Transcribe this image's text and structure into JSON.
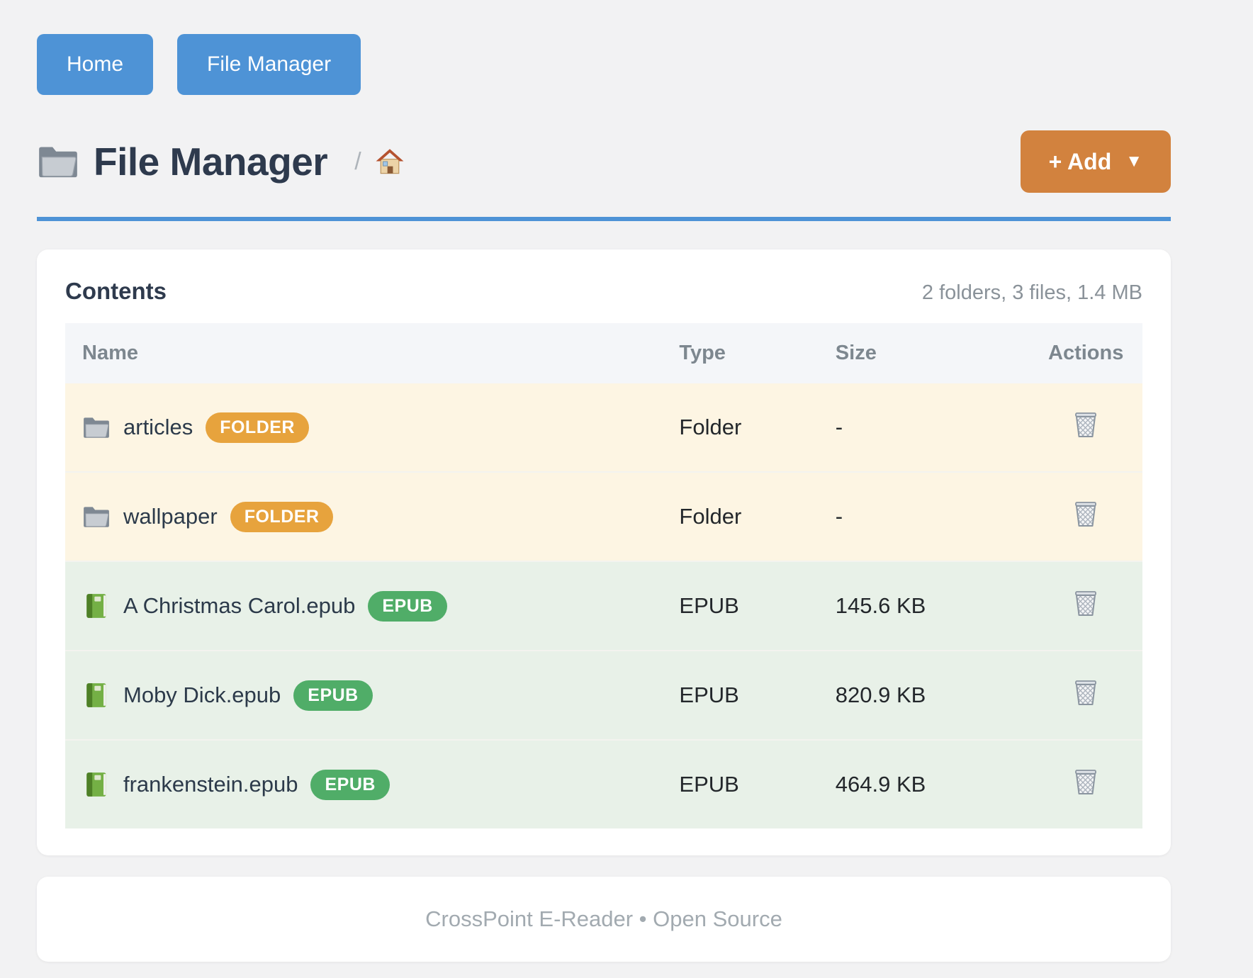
{
  "nav": {
    "home_label": "Home",
    "file_manager_label": "File Manager"
  },
  "header": {
    "title": "File Manager",
    "title_icon": "folder-icon",
    "breadcrumb_separator": "/",
    "breadcrumb_home_icon": "home-icon",
    "add_label": "+ Add",
    "add_caret": "▼"
  },
  "contents": {
    "heading": "Contents",
    "summary": "2 folders, 3 files, 1.4 MB",
    "columns": [
      "Name",
      "Type",
      "Size",
      "Actions"
    ],
    "rows": [
      {
        "name": "articles",
        "badge": "FOLDER",
        "type": "Folder",
        "size": "-",
        "icon": "folder-icon",
        "kind": "folder"
      },
      {
        "name": "wallpaper",
        "badge": "FOLDER",
        "type": "Folder",
        "size": "-",
        "icon": "folder-icon",
        "kind": "folder"
      },
      {
        "name": "A Christmas Carol.epub",
        "badge": "EPUB",
        "type": "EPUB",
        "size": "145.6 KB",
        "icon": "book-icon",
        "kind": "epub"
      },
      {
        "name": "Moby Dick.epub",
        "badge": "EPUB",
        "type": "EPUB",
        "size": "820.9 KB",
        "icon": "book-icon",
        "kind": "epub"
      },
      {
        "name": "frankenstein.epub",
        "badge": "EPUB",
        "type": "EPUB",
        "size": "464.9 KB",
        "icon": "book-icon",
        "kind": "epub"
      }
    ],
    "delete_icon": "trash-icon"
  },
  "footer": {
    "text": "CrossPoint E-Reader • Open Source"
  },
  "colors": {
    "page_background": "#f2f2f3",
    "primary_blue": "#4e93d6",
    "accent_orange": "#d2823e",
    "folder_badge": "#e7a33d",
    "epub_badge": "#50ad68",
    "folder_row_background": "#fdf5e3",
    "epub_row_background": "#e8f1e8",
    "table_header_background": "#f4f6f9",
    "heading_text": "#2e3a4d",
    "muted_text": "#8a9299"
  }
}
